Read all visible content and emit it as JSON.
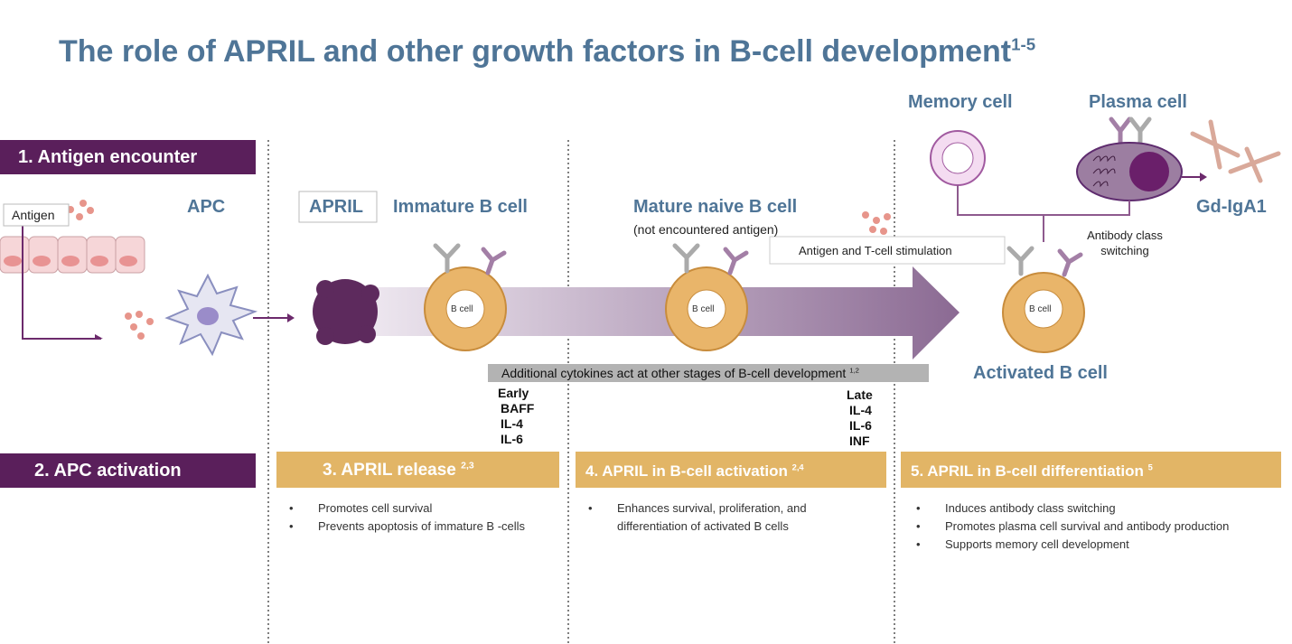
{
  "header": {
    "title": "The role of APRIL and other growth factors in B-cell development",
    "reference": "1-5"
  },
  "steps": [
    "1. Antigen encounter",
    "2. APC activation"
  ],
  "labels": {
    "antigen": "Antigen",
    "apc": "APC",
    "april": "APRIL",
    "immature_b_cell": "Immature B cell",
    "mature_naive_b_cell": "Mature naive B cell",
    "mature_note": "(not encountered antigen)",
    "stimulation": "Antigen and T-cell stimulation",
    "memory_cell": "Memory cell",
    "plasma_cell": "Plasma cell",
    "gd_iga1": "Gd-IgA1",
    "class_switching": "Antibody class switching",
    "activated_b_cell": "Activated B cell",
    "b_cell": "B cell"
  },
  "cytokines": {
    "note": "Additional cytokines act at other stages of B-cell development",
    "reference": "1,2",
    "early": {
      "heading": "Early",
      "items": [
        "BAFF",
        "IL-4",
        "IL-6"
      ]
    },
    "late": {
      "heading": "Late",
      "items": [
        "IL-4",
        "IL-6",
        "INF"
      ]
    }
  },
  "stages": [
    {
      "title": "3. APRIL release",
      "reference": "2,3",
      "bullets": [
        "Promotes cell survival",
        "Prevents apoptosis of immature B -cells"
      ]
    },
    {
      "title": "4. APRIL in B-cell activation",
      "reference": "2,4",
      "bullets": [
        "Enhances survival, proliferation, and differentiation of activated B cells"
      ]
    },
    {
      "title": "5. APRIL in B-cell differentiation",
      "reference": "5",
      "bullets": [
        "Induces antibody class switching",
        "Promotes plasma cell survival and antibody production",
        "Supports memory cell development"
      ]
    }
  ]
}
